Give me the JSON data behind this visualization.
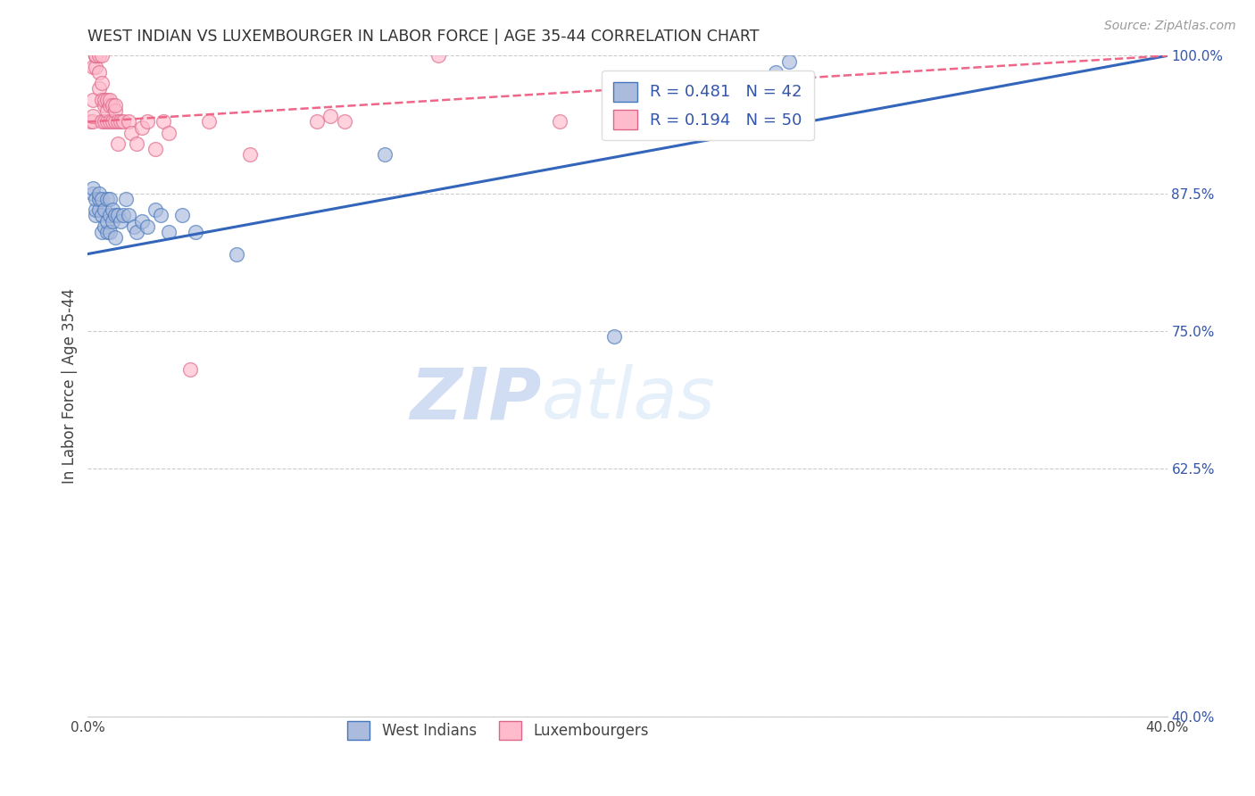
{
  "title": "WEST INDIAN VS LUXEMBOURGER IN LABOR FORCE | AGE 35-44 CORRELATION CHART",
  "source": "Source: ZipAtlas.com",
  "ylabel": "In Labor Force | Age 35-44",
  "x_min": 0.0,
  "x_max": 0.4,
  "y_min": 0.4,
  "y_max": 1.0,
  "x_ticks": [
    0.0,
    0.05,
    0.1,
    0.15,
    0.2,
    0.25,
    0.3,
    0.35,
    0.4
  ],
  "y_ticks": [
    0.4,
    0.625,
    0.75,
    0.875,
    1.0
  ],
  "y_tick_labels": [
    "40.0%",
    "62.5%",
    "75.0%",
    "87.5%",
    "100.0%"
  ],
  "grid_color": "#cccccc",
  "background_color": "#ffffff",
  "blue_fill": "#aabbdd",
  "blue_edge": "#4477bb",
  "pink_fill": "#ffbbcc",
  "pink_edge": "#dd6688",
  "blue_line_color": "#3366bb",
  "pink_line_color": "#ee6688",
  "legend_text_color": "#3355aa",
  "legend_label_blue": "West Indians",
  "legend_label_pink": "Luxembourgers",
  "watermark_zip": "ZIP",
  "watermark_atlas": "atlas",
  "blue_x": [
    0.002,
    0.002,
    0.003,
    0.003,
    0.003,
    0.004,
    0.004,
    0.004,
    0.005,
    0.005,
    0.005,
    0.006,
    0.006,
    0.007,
    0.007,
    0.007,
    0.008,
    0.008,
    0.008,
    0.009,
    0.009,
    0.01,
    0.01,
    0.011,
    0.012,
    0.013,
    0.014,
    0.015,
    0.017,
    0.018,
    0.02,
    0.022,
    0.025,
    0.027,
    0.03,
    0.035,
    0.04,
    0.055,
    0.11,
    0.195,
    0.255,
    0.26
  ],
  "blue_y": [
    0.875,
    0.88,
    0.855,
    0.86,
    0.87,
    0.86,
    0.87,
    0.875,
    0.84,
    0.855,
    0.87,
    0.845,
    0.86,
    0.84,
    0.85,
    0.87,
    0.84,
    0.855,
    0.87,
    0.85,
    0.86,
    0.835,
    0.855,
    0.855,
    0.85,
    0.855,
    0.87,
    0.855,
    0.845,
    0.84,
    0.85,
    0.845,
    0.86,
    0.855,
    0.84,
    0.855,
    0.84,
    0.82,
    0.91,
    0.745,
    0.985,
    0.995
  ],
  "pink_x": [
    0.001,
    0.002,
    0.002,
    0.002,
    0.002,
    0.003,
    0.003,
    0.003,
    0.003,
    0.004,
    0.004,
    0.004,
    0.005,
    0.005,
    0.005,
    0.005,
    0.006,
    0.006,
    0.006,
    0.007,
    0.007,
    0.007,
    0.008,
    0.008,
    0.008,
    0.009,
    0.009,
    0.01,
    0.01,
    0.01,
    0.011,
    0.011,
    0.012,
    0.013,
    0.015,
    0.016,
    0.018,
    0.02,
    0.022,
    0.025,
    0.028,
    0.03,
    0.038,
    0.045,
    0.06,
    0.085,
    0.09,
    0.095,
    0.13,
    0.175
  ],
  "pink_y": [
    0.94,
    0.94,
    0.945,
    0.96,
    0.99,
    0.99,
    1.0,
    1.0,
    1.0,
    0.97,
    0.985,
    1.0,
    0.94,
    0.96,
    0.975,
    1.0,
    0.94,
    0.955,
    0.96,
    0.94,
    0.95,
    0.96,
    0.94,
    0.955,
    0.96,
    0.94,
    0.955,
    0.94,
    0.95,
    0.955,
    0.92,
    0.94,
    0.94,
    0.94,
    0.94,
    0.93,
    0.92,
    0.935,
    0.94,
    0.915,
    0.94,
    0.93,
    0.715,
    0.94,
    0.91,
    0.94,
    0.945,
    0.94,
    1.0,
    0.94
  ],
  "blue_trend_x": [
    0.0,
    0.4
  ],
  "blue_trend_y": [
    0.82,
    1.0
  ],
  "pink_trend_x": [
    0.0,
    0.4
  ],
  "pink_trend_y": [
    0.94,
    1.0
  ]
}
